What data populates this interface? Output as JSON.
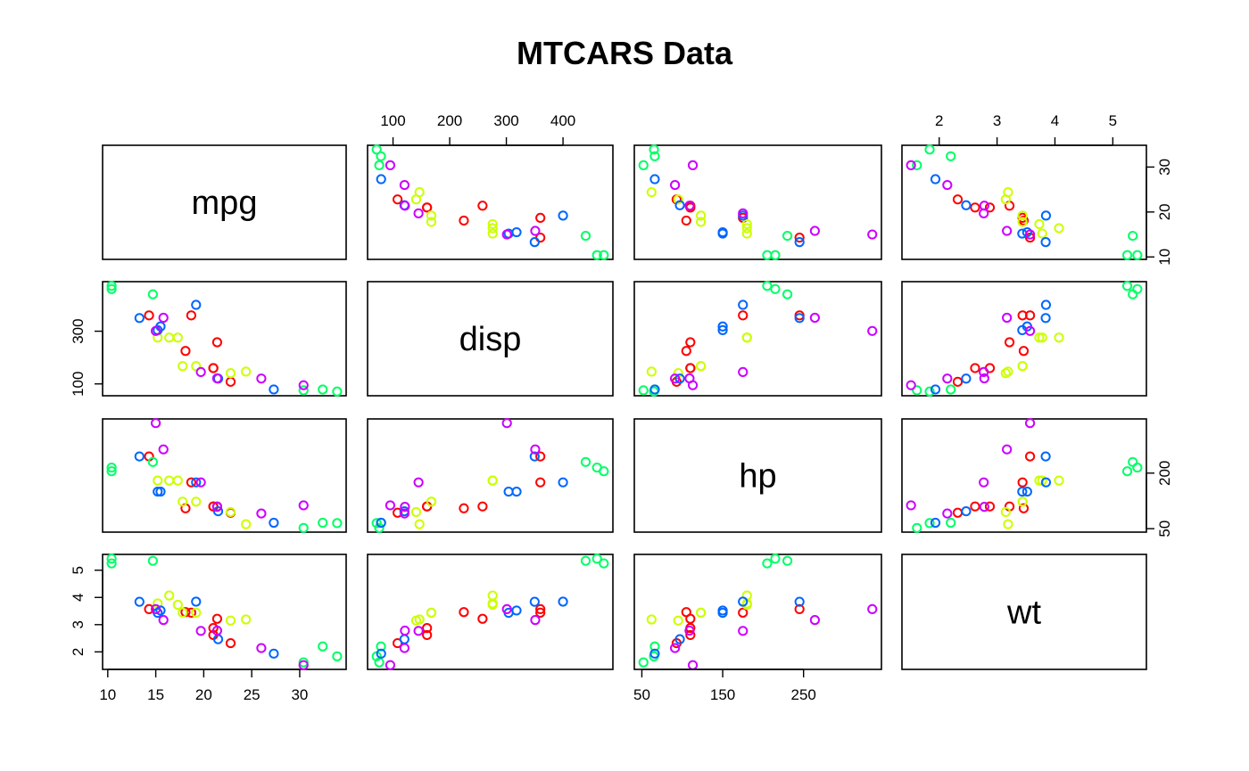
{
  "chart_data": {
    "type": "scatter",
    "title": "MTCARS Data",
    "variables": [
      "mpg",
      "disp",
      "hp",
      "wt"
    ],
    "ranges": {
      "mpg": [
        10.4,
        33.9
      ],
      "disp": [
        71.1,
        472
      ],
      "hp": [
        52,
        335
      ],
      "wt": [
        1.513,
        5.424
      ]
    },
    "ticks": {
      "mpg": [
        10,
        20,
        30
      ],
      "disp": [
        100,
        300
      ],
      "hp": [
        50,
        200
      ],
      "wt": [
        2,
        3,
        4,
        5
      ]
    },
    "top_ticks": {
      "disp": [
        100,
        200,
        300,
        400
      ],
      "wt": [
        2,
        3,
        4,
        5
      ]
    },
    "bottom_ticks": {
      "mpg": [
        10,
        15,
        20,
        25,
        30
      ],
      "hp": [
        50,
        150,
        250
      ]
    },
    "left_ticks": {
      "disp": [
        100,
        300
      ],
      "wt": [
        2,
        3,
        4,
        5
      ]
    },
    "right_ticks": {
      "mpg": [
        10,
        20,
        30
      ],
      "hp": [
        50,
        200
      ]
    },
    "records": [
      {
        "mpg": 21.0,
        "disp": 160.0,
        "hp": 110,
        "wt": 2.62,
        "color": "#FF0000"
      },
      {
        "mpg": 21.0,
        "disp": 160.0,
        "hp": 110,
        "wt": 2.875,
        "color": "#FF0000"
      },
      {
        "mpg": 22.8,
        "disp": 108.0,
        "hp": 93,
        "wt": 2.32,
        "color": "#FF0000"
      },
      {
        "mpg": 21.4,
        "disp": 258.0,
        "hp": 110,
        "wt": 3.215,
        "color": "#FF0000"
      },
      {
        "mpg": 18.7,
        "disp": 360.0,
        "hp": 175,
        "wt": 3.44,
        "color": "#FF0000"
      },
      {
        "mpg": 18.1,
        "disp": 225.0,
        "hp": 105,
        "wt": 3.46,
        "color": "#FF0000"
      },
      {
        "mpg": 14.3,
        "disp": 360.0,
        "hp": 245,
        "wt": 3.57,
        "color": "#FF0000"
      },
      {
        "mpg": 24.4,
        "disp": 146.7,
        "hp": 62,
        "wt": 3.19,
        "color": "#CCFF00"
      },
      {
        "mpg": 22.8,
        "disp": 140.8,
        "hp": 95,
        "wt": 3.15,
        "color": "#CCFF00"
      },
      {
        "mpg": 19.2,
        "disp": 167.6,
        "hp": 123,
        "wt": 3.44,
        "color": "#CCFF00"
      },
      {
        "mpg": 17.8,
        "disp": 167.6,
        "hp": 123,
        "wt": 3.44,
        "color": "#CCFF00"
      },
      {
        "mpg": 16.4,
        "disp": 275.8,
        "hp": 180,
        "wt": 4.07,
        "color": "#CCFF00"
      },
      {
        "mpg": 17.3,
        "disp": 275.8,
        "hp": 180,
        "wt": 3.73,
        "color": "#CCFF00"
      },
      {
        "mpg": 15.2,
        "disp": 275.8,
        "hp": 180,
        "wt": 3.78,
        "color": "#CCFF00"
      },
      {
        "mpg": 10.4,
        "disp": 472.0,
        "hp": 205,
        "wt": 5.25,
        "color": "#00FF66"
      },
      {
        "mpg": 10.4,
        "disp": 460.0,
        "hp": 215,
        "wt": 5.424,
        "color": "#00FF66"
      },
      {
        "mpg": 14.7,
        "disp": 440.0,
        "hp": 230,
        "wt": 5.345,
        "color": "#00FF66"
      },
      {
        "mpg": 32.4,
        "disp": 78.7,
        "hp": 66,
        "wt": 2.2,
        "color": "#00FF66"
      },
      {
        "mpg": 30.4,
        "disp": 75.7,
        "hp": 52,
        "wt": 1.615,
        "color": "#00FF66"
      },
      {
        "mpg": 33.9,
        "disp": 71.1,
        "hp": 65,
        "wt": 1.835,
        "color": "#00FF66"
      },
      {
        "mpg": 21.5,
        "disp": 120.1,
        "hp": 97,
        "wt": 2.465,
        "color": "#0066FF"
      },
      {
        "mpg": 15.5,
        "disp": 318.0,
        "hp": 150,
        "wt": 3.52,
        "color": "#0066FF"
      },
      {
        "mpg": 15.2,
        "disp": 304.0,
        "hp": 150,
        "wt": 3.435,
        "color": "#0066FF"
      },
      {
        "mpg": 13.3,
        "disp": 350.0,
        "hp": 245,
        "wt": 3.84,
        "color": "#0066FF"
      },
      {
        "mpg": 19.2,
        "disp": 400.0,
        "hp": 175,
        "wt": 3.845,
        "color": "#0066FF"
      },
      {
        "mpg": 27.3,
        "disp": 79.0,
        "hp": 66,
        "wt": 1.935,
        "color": "#0066FF"
      },
      {
        "mpg": 26.0,
        "disp": 120.3,
        "hp": 91,
        "wt": 2.14,
        "color": "#CC00FF"
      },
      {
        "mpg": 30.4,
        "disp": 95.1,
        "hp": 113,
        "wt": 1.513,
        "color": "#CC00FF"
      },
      {
        "mpg": 15.8,
        "disp": 351.0,
        "hp": 264,
        "wt": 3.17,
        "color": "#CC00FF"
      },
      {
        "mpg": 19.7,
        "disp": 145.0,
        "hp": 175,
        "wt": 2.77,
        "color": "#CC00FF"
      },
      {
        "mpg": 15.0,
        "disp": 301.0,
        "hp": 335,
        "wt": 3.57,
        "color": "#CC00FF"
      },
      {
        "mpg": 21.4,
        "disp": 121.0,
        "hp": 109,
        "wt": 2.78,
        "color": "#CC00FF"
      }
    ]
  }
}
